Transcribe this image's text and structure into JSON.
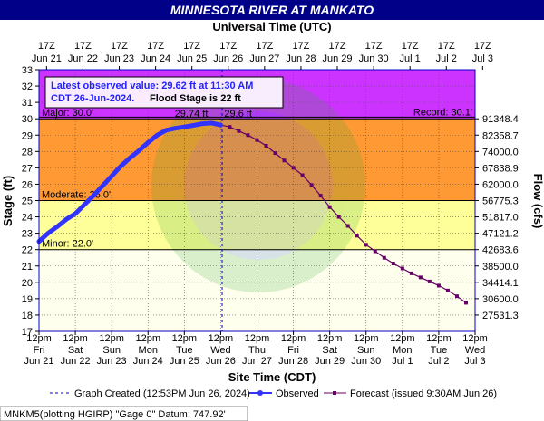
{
  "title": "MINNESOTA RIVER AT MANKATO",
  "top_axis_title": "Universal Time (UTC)",
  "bottom_axis_title": "Site Time (CDT)",
  "left_axis_title": "Stage (ft)",
  "right_axis_title": "Flow (cfs)",
  "info_box": {
    "line1": "Latest observed value: 29.62 ft at 11:30 AM",
    "line2a": "CDT 26-Jun-2024.",
    "line2b": "Flood Stage is 22 ft"
  },
  "flood_categories": [
    {
      "name": "Minor",
      "label": "Minor: 22.0'",
      "from": 22.0,
      "to": 25.0,
      "color": "#ffff99"
    },
    {
      "name": "Moderate",
      "label": "Moderate: 25.0'",
      "from": 25.0,
      "to": 30.0,
      "color": "#ff9933"
    },
    {
      "name": "Major",
      "label": "Major: 30.0'",
      "from": 30.0,
      "to": 33.0,
      "color": "#cc33ff"
    }
  ],
  "record_label": "Record: 30.1'",
  "record_value": 30.1,
  "peak_observed_label": "29.74 ft",
  "peak_forecast_label": "29.6 ft",
  "legend": {
    "created": "Graph Created (12:53PM Jun 26, 2024)",
    "observed": "Observed",
    "forecast": "Forecast (issued 9:30AM Jun 26)"
  },
  "footer": "MNKM5(plotting HGIRP) \"Gage 0\" Datum: 747.92'",
  "colors": {
    "title_bg": "#000088",
    "observed": "#3333ff",
    "forecast": "#660066",
    "major": "#cc33ff",
    "moderate": "#ff9933",
    "minor": "#ffff99",
    "normal": "#ffffee",
    "frame": "#0000cc"
  },
  "chart_data": {
    "type": "line",
    "x_unit": "days after Jun 21 12pm CDT",
    "ylim": [
      17,
      33
    ],
    "xlim": [
      0,
      12
    ],
    "y_ticks": [
      17,
      18,
      19,
      20,
      21,
      22,
      23,
      24,
      25,
      26,
      27,
      28,
      29,
      30,
      31,
      32,
      33
    ],
    "flow_ticks": [
      {
        "stage": 18,
        "label": "27531.3"
      },
      {
        "stage": 19,
        "label": "30600.0"
      },
      {
        "stage": 20,
        "label": "34414.1"
      },
      {
        "stage": 21,
        "label": "38500.0"
      },
      {
        "stage": 22,
        "label": "42683.6"
      },
      {
        "stage": 23,
        "label": "47121.2"
      },
      {
        "stage": 24,
        "label": "51817.0"
      },
      {
        "stage": 25,
        "label": "56775.3"
      },
      {
        "stage": 26,
        "label": "62000.0"
      },
      {
        "stage": 27,
        "label": "67838.9"
      },
      {
        "stage": 28,
        "label": "74000.0"
      },
      {
        "stage": 29,
        "label": "82358.7"
      },
      {
        "stage": 30,
        "label": "91348.4"
      }
    ],
    "bottom_ticks": [
      {
        "time": "12pm",
        "day": "Fri",
        "date": "Jun 21"
      },
      {
        "time": "12pm",
        "day": "Sat",
        "date": "Jun 22"
      },
      {
        "time": "12pm",
        "day": "Sun",
        "date": "Jun 23"
      },
      {
        "time": "12pm",
        "day": "Mon",
        "date": "Jun 24"
      },
      {
        "time": "12pm",
        "day": "Tue",
        "date": "Jun 25"
      },
      {
        "time": "12pm",
        "day": "Wed",
        "date": "Jun 26"
      },
      {
        "time": "12pm",
        "day": "Thu",
        "date": "Jun 27"
      },
      {
        "time": "12pm",
        "day": "Fri",
        "date": "Jun 28"
      },
      {
        "time": "12pm",
        "day": "Sat",
        "date": "Jun 29"
      },
      {
        "time": "12pm",
        "day": "Sun",
        "date": "Jun 30"
      },
      {
        "time": "12pm",
        "day": "Mon",
        "date": "Jul 1"
      },
      {
        "time": "12pm",
        "day": "Tue",
        "date": "Jul 2"
      },
      {
        "time": "12pm",
        "day": "Wed",
        "date": "Jul 3"
      }
    ],
    "top_ticks": [
      {
        "time": "17Z",
        "date": "Jun 21"
      },
      {
        "time": "17Z",
        "date": "Jun 22"
      },
      {
        "time": "17Z",
        "date": "Jun 23"
      },
      {
        "time": "17Z",
        "date": "Jun 24"
      },
      {
        "time": "17Z",
        "date": "Jun 25"
      },
      {
        "time": "17Z",
        "date": "Jun 26"
      },
      {
        "time": "17Z",
        "date": "Jun 27"
      },
      {
        "time": "17Z",
        "date": "Jun 28"
      },
      {
        "time": "17Z",
        "date": "Jun 29"
      },
      {
        "time": "17Z",
        "date": "Jun 30"
      },
      {
        "time": "17Z",
        "date": "Jul 1"
      },
      {
        "time": "17Z",
        "date": "Jul 2"
      },
      {
        "time": "17Z",
        "date": "Jul 3"
      }
    ],
    "graph_created_x": 5.04,
    "series": [
      {
        "name": "Observed",
        "x": [
          0.0,
          0.25,
          0.5,
          0.75,
          1.0,
          1.25,
          1.5,
          1.75,
          2.0,
          2.25,
          2.5,
          2.75,
          3.0,
          3.25,
          3.5,
          3.75,
          4.0,
          4.25,
          4.5,
          4.75,
          5.0
        ],
        "y": [
          22.5,
          23.0,
          23.4,
          23.85,
          24.2,
          24.75,
          25.3,
          25.9,
          26.5,
          27.1,
          27.6,
          28.05,
          28.55,
          29.0,
          29.3,
          29.42,
          29.5,
          29.6,
          29.7,
          29.74,
          29.62
        ]
      },
      {
        "name": "Forecast",
        "x": [
          5.0,
          5.25,
          5.5,
          5.75,
          6.0,
          6.25,
          6.5,
          6.75,
          7.0,
          7.25,
          7.5,
          7.75,
          8.0,
          8.25,
          8.5,
          8.75,
          9.0,
          9.25,
          9.5,
          9.75,
          10.0,
          10.25,
          10.5,
          10.75,
          11.0,
          11.25,
          11.5,
          11.75
        ],
        "y": [
          29.62,
          29.5,
          29.25,
          29.0,
          28.7,
          28.35,
          27.9,
          27.45,
          27.0,
          26.55,
          25.95,
          25.3,
          24.6,
          24.0,
          23.45,
          22.85,
          22.3,
          21.9,
          21.5,
          21.15,
          20.85,
          20.55,
          20.3,
          20.05,
          19.8,
          19.5,
          19.15,
          18.75
        ]
      }
    ]
  }
}
